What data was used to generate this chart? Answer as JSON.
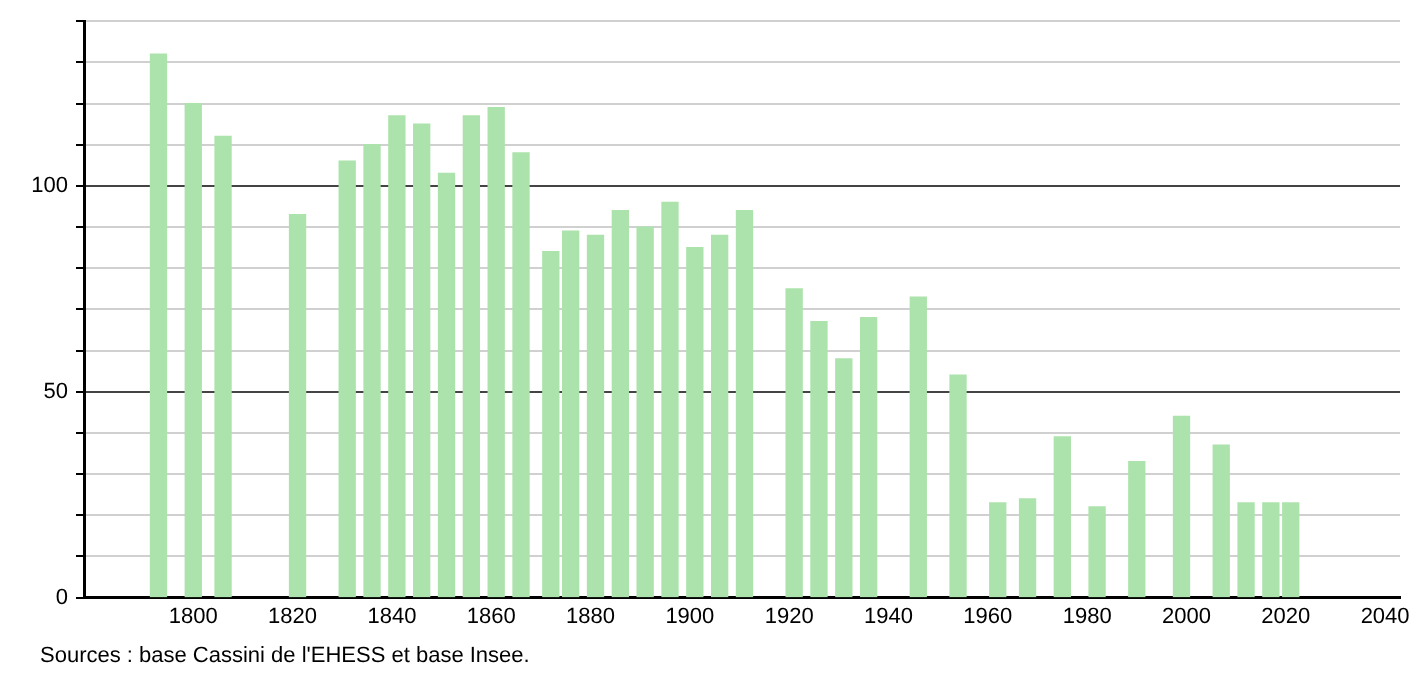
{
  "chart_data": {
    "type": "bar",
    "x": [
      1793,
      1800,
      1806,
      1821,
      1831,
      1836,
      1841,
      1846,
      1851,
      1856,
      1861,
      1866,
      1872,
      1876,
      1881,
      1886,
      1891,
      1896,
      1901,
      1906,
      1911,
      1921,
      1926,
      1931,
      1936,
      1946,
      1954,
      1962,
      1968,
      1975,
      1982,
      1990,
      1999,
      2007,
      2012,
      2017,
      2021
    ],
    "values": [
      132,
      120,
      112,
      93,
      106,
      110,
      117,
      115,
      103,
      117,
      119,
      108,
      84,
      89,
      88,
      94,
      90,
      96,
      85,
      88,
      94,
      75,
      67,
      58,
      68,
      73,
      54,
      23,
      24,
      39,
      22,
      33,
      44,
      37,
      23,
      23,
      23
    ],
    "color": "#ace3ac",
    "xlim": [
      1778,
      2043
    ],
    "xticks": [
      1800,
      1820,
      1840,
      1860,
      1880,
      1900,
      1920,
      1940,
      1960,
      1980,
      2000,
      2020,
      2040
    ],
    "ylim": [
      0,
      140
    ],
    "yticks": [
      0,
      {
        "value": 10,
        "label": null
      },
      {
        "value": 20,
        "label": null
      },
      {
        "value": 30,
        "label": null
      },
      {
        "value": 40,
        "label": null
      },
      50,
      {
        "value": 60,
        "label": null
      },
      {
        "value": 70,
        "label": null
      },
      {
        "value": 80,
        "label": null
      },
      {
        "value": 90,
        "label": null
      },
      100,
      {
        "value": 110,
        "label": null
      },
      {
        "value": 120,
        "label": null
      },
      {
        "value": 130,
        "label": null
      },
      {
        "value": 140,
        "label": null
      }
    ],
    "grid": "y",
    "annotations": [
      "Sources : base Cassini de l'EHESS et base Insee."
    ]
  }
}
